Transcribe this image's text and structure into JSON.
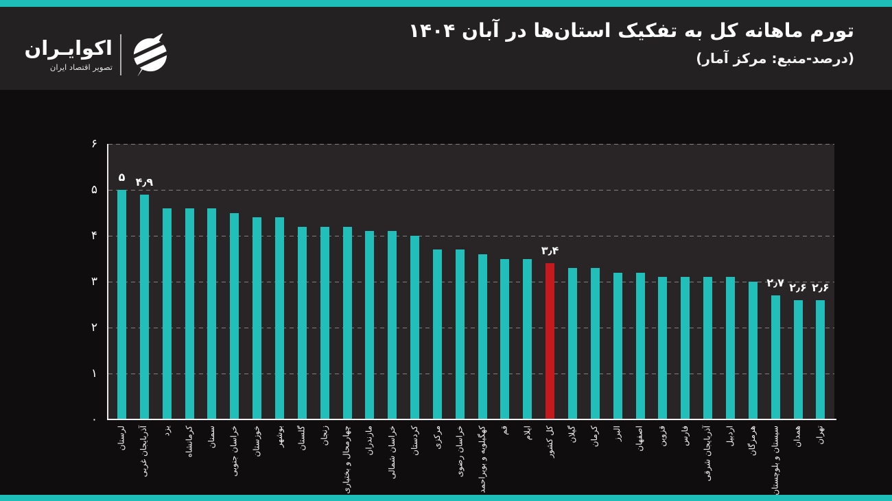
{
  "brand": {
    "name": "اکوایـران",
    "tagline": "تصویر اقتصاد ایران",
    "logo_icon": "ecoiran-logo-icon"
  },
  "header": {
    "title": "تورم ماهانه کل به تفکیک استان‌ها در آبان ۱۴۰۴",
    "subtitle": "(درصد-منبع: مرکز آمار)"
  },
  "chart_data": {
    "type": "bar",
    "title": "تورم ماهانه کل به تفکیک استان‌ها در آبان ۱۴۰۴",
    "unit_note": "درصد",
    "source_note": "مرکز آمار",
    "direction": "rtl",
    "categories": [
      "لرستان",
      "آذربایجان غربی",
      "یزد",
      "کرمانشاه",
      "سمنان",
      "خراسان جنوبی",
      "خوزستان",
      "بوشهر",
      "گلستان",
      "زنجان",
      "چهارمحال و بختیاری",
      "مازندران",
      "خراسان شمالی",
      "کردستان",
      "مرکزی",
      "خراسان رضوی",
      "کهگیلویه و بویراحمد",
      "قم",
      "ایلام",
      "کل کشور",
      "گیلان",
      "کرمان",
      "البرز",
      "اصفهان",
      "قزوین",
      "فارس",
      "آذربایجان شرقی",
      "اردبیل",
      "هرمزگان",
      "سیستان و بلوچستان",
      "همدان",
      "تهران"
    ],
    "values": [
      5,
      4.9,
      4.6,
      4.6,
      4.6,
      4.5,
      4.4,
      4.4,
      4.2,
      4.2,
      4.2,
      4.1,
      4.1,
      4.0,
      3.7,
      3.7,
      3.6,
      3.5,
      3.5,
      3.4,
      3.3,
      3.3,
      3.2,
      3.2,
      3.1,
      3.1,
      3.1,
      3.1,
      3.0,
      2.7,
      2.6,
      2.6
    ],
    "point_labels": [
      {
        "index": 0,
        "text": "۵"
      },
      {
        "index": 1,
        "text": "۴٫۹"
      },
      {
        "index": 19,
        "text": "۳٫۴"
      },
      {
        "index": 29,
        "text": "۲٫۷"
      },
      {
        "index": 30,
        "text": "۲٫۶"
      },
      {
        "index": 31,
        "text": "۲٫۶"
      }
    ],
    "highlight_index": 19,
    "highlight_category": "کل کشور",
    "bar_color": "#22BFBA",
    "highlight_color": "#C3191F",
    "ylim": [
      0,
      6
    ],
    "ytick_labels": [
      "۰",
      "۱",
      "۲",
      "۳",
      "۴",
      "۵",
      "۶"
    ],
    "grid": "horizontal-dashed",
    "legend": "none",
    "xlabel": "",
    "ylabel": ""
  },
  "colors": {
    "accent_strip": "#1DBEB8",
    "page_background": "#0F0D0E",
    "header_background": "#242122",
    "plot_background": "#292526",
    "text": "#FFFFFF"
  }
}
